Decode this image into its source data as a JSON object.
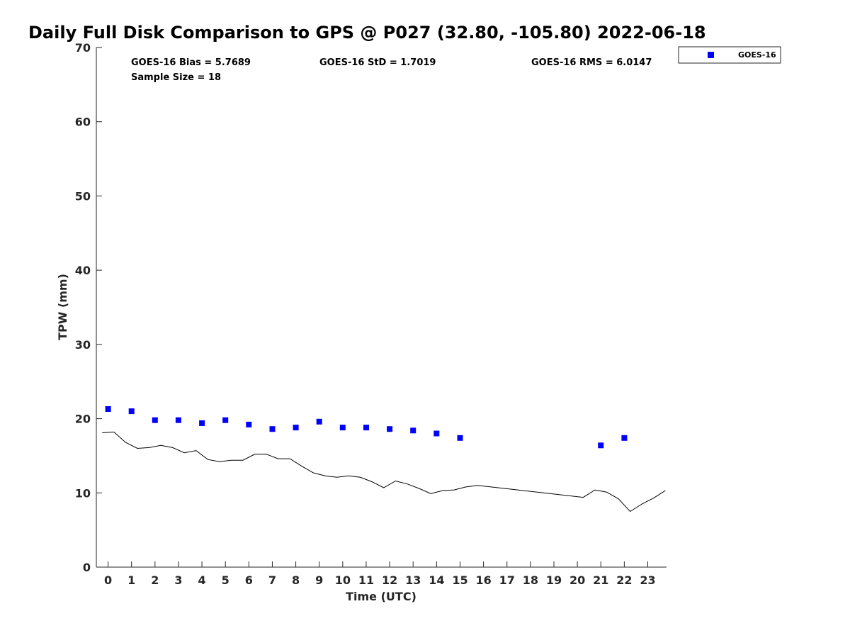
{
  "chart_data": {
    "type": "scatter",
    "title": "Daily Full Disk Comparison to GPS @ P027 (32.80, -105.80) 2022-06-18",
    "xlabel": "Time (UTC)",
    "ylabel": "TPW (mm)",
    "xlim": [
      -0.5,
      23.8
    ],
    "ylim": [
      0,
      70
    ],
    "xticks": [
      0,
      1,
      2,
      3,
      4,
      5,
      6,
      7,
      8,
      9,
      10,
      11,
      12,
      13,
      14,
      15,
      16,
      17,
      18,
      19,
      20,
      21,
      22,
      23
    ],
    "yticks": [
      0,
      10,
      20,
      30,
      40,
      50,
      60,
      70
    ],
    "grid": false,
    "legend_position": "top-right",
    "series": [
      {
        "name": "GOES-16",
        "kind": "scatter",
        "marker": "square",
        "color": "#0000ff",
        "x": [
          0,
          1,
          2,
          3,
          4,
          5,
          6,
          7,
          8,
          9,
          10,
          11,
          12,
          13,
          14,
          15,
          21,
          22
        ],
        "y": [
          21.3,
          21.0,
          19.8,
          19.8,
          19.4,
          19.8,
          19.2,
          18.6,
          18.8,
          19.6,
          18.8,
          18.8,
          18.6,
          18.4,
          18.0,
          17.4,
          16.4,
          17.4
        ]
      },
      {
        "kind": "line",
        "color": "#000000",
        "x": [
          -0.25,
          0.25,
          0.75,
          1.25,
          1.75,
          2.25,
          2.75,
          3.25,
          3.75,
          4.25,
          4.75,
          5.25,
          5.75,
          6.25,
          6.75,
          7.25,
          7.75,
          8.25,
          8.75,
          9.25,
          9.75,
          10.25,
          10.75,
          11.25,
          11.75,
          12.25,
          12.75,
          13.25,
          13.75,
          14.25,
          14.75,
          15.25,
          15.75,
          20.25,
          20.75,
          21.25,
          21.75,
          22.25,
          22.75,
          23.25,
          23.75
        ],
        "y": [
          18.1,
          18.2,
          16.8,
          16.0,
          16.1,
          16.4,
          16.1,
          15.4,
          15.7,
          14.5,
          14.2,
          14.4,
          14.4,
          15.2,
          15.2,
          14.6,
          14.6,
          13.6,
          12.7,
          12.3,
          12.1,
          12.3,
          12.1,
          11.5,
          10.7,
          11.6,
          11.2,
          10.6,
          9.9,
          10.3,
          10.4,
          10.8,
          11.0,
          9.4,
          10.4,
          10.1,
          9.2,
          7.5,
          8.5,
          9.3,
          10.3
        ]
      }
    ],
    "annotations": {
      "bias": "GOES-16 Bias = 5.7689",
      "std": "GOES-16 StD = 1.7019",
      "rms": "GOES-16 RMS = 6.0147",
      "sample": "Sample Size = 18"
    },
    "legend_entries": [
      "GOES-16"
    ]
  }
}
